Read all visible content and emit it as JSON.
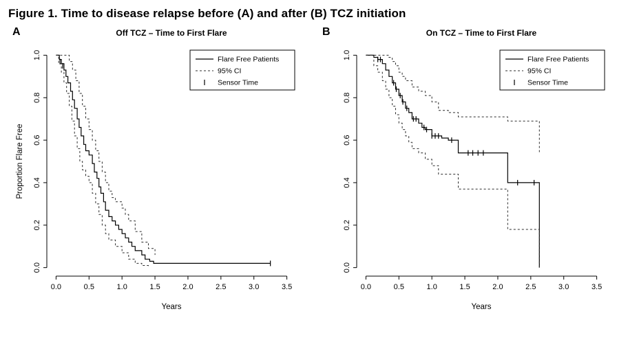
{
  "figure": {
    "caption": "Figure 1. Time to disease relapse before (A) and after (B) TCZ initiation"
  },
  "chart_data": [
    {
      "type": "line",
      "panel_label": "A",
      "title": "Off TCZ – Time to First Flare",
      "xlabel": "Years",
      "ylabel": "Proportion Flare Free",
      "xlim": [
        0,
        3.5
      ],
      "ylim": [
        0,
        1.0
      ],
      "xticks": [
        0.0,
        0.5,
        1.0,
        1.5,
        2.0,
        2.5,
        3.0,
        3.5
      ],
      "yticks": [
        0.0,
        0.2,
        0.4,
        0.6,
        0.8,
        1.0
      ],
      "grid": false,
      "legend": [
        "Flare Free Patients",
        "95% CI",
        "Sensor Time"
      ],
      "legend_position": "top-right",
      "series": [
        {
          "name": "Flare Free Patients",
          "style": "solid",
          "step": true,
          "points": [
            [
              0,
              1.0
            ],
            [
              0.05,
              0.98
            ],
            [
              0.08,
              0.96
            ],
            [
              0.12,
              0.93
            ],
            [
              0.15,
              0.9
            ],
            [
              0.18,
              0.87
            ],
            [
              0.22,
              0.83
            ],
            [
              0.25,
              0.79
            ],
            [
              0.28,
              0.75
            ],
            [
              0.32,
              0.7
            ],
            [
              0.35,
              0.66
            ],
            [
              0.38,
              0.62
            ],
            [
              0.42,
              0.58
            ],
            [
              0.45,
              0.55
            ],
            [
              0.5,
              0.53
            ],
            [
              0.55,
              0.49
            ],
            [
              0.58,
              0.45
            ],
            [
              0.62,
              0.42
            ],
            [
              0.65,
              0.38
            ],
            [
              0.68,
              0.35
            ],
            [
              0.72,
              0.31
            ],
            [
              0.75,
              0.27
            ],
            [
              0.8,
              0.24
            ],
            [
              0.85,
              0.22
            ],
            [
              0.9,
              0.2
            ],
            [
              0.95,
              0.18
            ],
            [
              1.0,
              0.16
            ],
            [
              1.05,
              0.14
            ],
            [
              1.1,
              0.12
            ],
            [
              1.15,
              0.1
            ],
            [
              1.2,
              0.08
            ],
            [
              1.3,
              0.06
            ],
            [
              1.35,
              0.04
            ],
            [
              1.42,
              0.03
            ],
            [
              1.48,
              0.02
            ],
            [
              3.25,
              0.02
            ]
          ]
        },
        {
          "name": "95% CI upper",
          "style": "dashed",
          "step": true,
          "points": [
            [
              0,
              1.0
            ],
            [
              0.15,
              1.0
            ],
            [
              0.2,
              0.97
            ],
            [
              0.25,
              0.93
            ],
            [
              0.3,
              0.88
            ],
            [
              0.35,
              0.82
            ],
            [
              0.4,
              0.76
            ],
            [
              0.45,
              0.7
            ],
            [
              0.5,
              0.65
            ],
            [
              0.55,
              0.6
            ],
            [
              0.6,
              0.55
            ],
            [
              0.65,
              0.5
            ],
            [
              0.7,
              0.45
            ],
            [
              0.75,
              0.4
            ],
            [
              0.8,
              0.36
            ],
            [
              0.85,
              0.33
            ],
            [
              0.9,
              0.31
            ],
            [
              1.0,
              0.28
            ],
            [
              1.05,
              0.25
            ],
            [
              1.1,
              0.22
            ],
            [
              1.2,
              0.17
            ],
            [
              1.3,
              0.12
            ],
            [
              1.4,
              0.09
            ],
            [
              1.5,
              0.06
            ]
          ]
        },
        {
          "name": "95% CI lower",
          "style": "dashed",
          "step": true,
          "points": [
            [
              0,
              1.0
            ],
            [
              0.04,
              0.96
            ],
            [
              0.08,
              0.92
            ],
            [
              0.12,
              0.87
            ],
            [
              0.16,
              0.82
            ],
            [
              0.2,
              0.76
            ],
            [
              0.24,
              0.69
            ],
            [
              0.28,
              0.62
            ],
            [
              0.32,
              0.56
            ],
            [
              0.36,
              0.5
            ],
            [
              0.4,
              0.46
            ],
            [
              0.45,
              0.43
            ],
            [
              0.5,
              0.4
            ],
            [
              0.55,
              0.35
            ],
            [
              0.6,
              0.3
            ],
            [
              0.65,
              0.25
            ],
            [
              0.7,
              0.2
            ],
            [
              0.75,
              0.16
            ],
            [
              0.8,
              0.13
            ],
            [
              0.9,
              0.1
            ],
            [
              1.0,
              0.07
            ],
            [
              1.1,
              0.04
            ],
            [
              1.2,
              0.02
            ],
            [
              1.3,
              0.01
            ],
            [
              1.4,
              0.0
            ]
          ]
        }
      ],
      "censor_ticks": [
        [
          0.06,
          0.97
        ],
        [
          0.1,
          0.95
        ],
        [
          3.25,
          0.02
        ]
      ]
    },
    {
      "type": "line",
      "panel_label": "B",
      "title": "On TCZ – Time to First Flare",
      "xlabel": "Years",
      "ylabel": "",
      "xlim": [
        0,
        3.5
      ],
      "ylim": [
        0,
        1.0
      ],
      "xticks": [
        0.0,
        0.5,
        1.0,
        1.5,
        2.0,
        2.5,
        3.0,
        3.5
      ],
      "yticks": [
        0.0,
        0.2,
        0.4,
        0.6,
        0.8,
        1.0
      ],
      "grid": false,
      "legend": [
        "Flare Free Patients",
        "95% CI",
        "Sensor Time"
      ],
      "legend_position": "top-right",
      "series": [
        {
          "name": "Flare Free Patients",
          "style": "solid",
          "step": true,
          "points": [
            [
              0,
              1.0
            ],
            [
              0.12,
              0.99
            ],
            [
              0.18,
              0.98
            ],
            [
              0.25,
              0.96
            ],
            [
              0.3,
              0.93
            ],
            [
              0.35,
              0.9
            ],
            [
              0.4,
              0.87
            ],
            [
              0.45,
              0.84
            ],
            [
              0.5,
              0.81
            ],
            [
              0.55,
              0.78
            ],
            [
              0.6,
              0.75
            ],
            [
              0.65,
              0.73
            ],
            [
              0.7,
              0.7
            ],
            [
              0.8,
              0.68
            ],
            [
              0.85,
              0.66
            ],
            [
              0.9,
              0.65
            ],
            [
              1.0,
              0.62
            ],
            [
              1.15,
              0.61
            ],
            [
              1.25,
              0.6
            ],
            [
              1.4,
              0.54
            ],
            [
              2.1,
              0.54
            ],
            [
              2.15,
              0.4
            ],
            [
              2.6,
              0.4
            ],
            [
              2.63,
              0.0
            ]
          ]
        },
        {
          "name": "95% CI upper",
          "style": "dashed",
          "step": true,
          "points": [
            [
              0,
              1.0
            ],
            [
              0.3,
              1.0
            ],
            [
              0.35,
              0.99
            ],
            [
              0.4,
              0.97
            ],
            [
              0.45,
              0.95
            ],
            [
              0.5,
              0.92
            ],
            [
              0.55,
              0.9
            ],
            [
              0.6,
              0.88
            ],
            [
              0.7,
              0.85
            ],
            [
              0.8,
              0.83
            ],
            [
              0.9,
              0.81
            ],
            [
              1.0,
              0.78
            ],
            [
              1.1,
              0.74
            ],
            [
              1.25,
              0.73
            ],
            [
              1.4,
              0.71
            ],
            [
              2.1,
              0.71
            ],
            [
              2.15,
              0.69
            ],
            [
              2.6,
              0.69
            ],
            [
              2.63,
              0.54
            ]
          ]
        },
        {
          "name": "95% CI lower",
          "style": "dashed",
          "step": true,
          "points": [
            [
              0,
              1.0
            ],
            [
              0.12,
              0.95
            ],
            [
              0.18,
              0.92
            ],
            [
              0.25,
              0.88
            ],
            [
              0.3,
              0.84
            ],
            [
              0.35,
              0.8
            ],
            [
              0.4,
              0.76
            ],
            [
              0.45,
              0.72
            ],
            [
              0.5,
              0.68
            ],
            [
              0.55,
              0.65
            ],
            [
              0.6,
              0.62
            ],
            [
              0.65,
              0.59
            ],
            [
              0.7,
              0.56
            ],
            [
              0.8,
              0.54
            ],
            [
              0.9,
              0.51
            ],
            [
              1.0,
              0.48
            ],
            [
              1.1,
              0.44
            ],
            [
              1.4,
              0.37
            ],
            [
              2.1,
              0.37
            ],
            [
              2.15,
              0.18
            ],
            [
              2.6,
              0.18
            ],
            [
              2.63,
              0.0
            ]
          ]
        }
      ],
      "censor_ticks": [
        [
          0.18,
          0.98
        ],
        [
          0.22,
          0.98
        ],
        [
          0.42,
          0.87
        ],
        [
          0.46,
          0.84
        ],
        [
          0.52,
          0.81
        ],
        [
          0.56,
          0.78
        ],
        [
          0.62,
          0.75
        ],
        [
          0.72,
          0.7
        ],
        [
          0.76,
          0.7
        ],
        [
          0.88,
          0.66
        ],
        [
          0.92,
          0.65
        ],
        [
          1.0,
          0.62
        ],
        [
          1.05,
          0.62
        ],
        [
          1.1,
          0.62
        ],
        [
          1.3,
          0.6
        ],
        [
          1.55,
          0.54
        ],
        [
          1.62,
          0.54
        ],
        [
          1.7,
          0.54
        ],
        [
          1.78,
          0.54
        ],
        [
          2.3,
          0.4
        ],
        [
          2.55,
          0.4
        ]
      ]
    }
  ]
}
